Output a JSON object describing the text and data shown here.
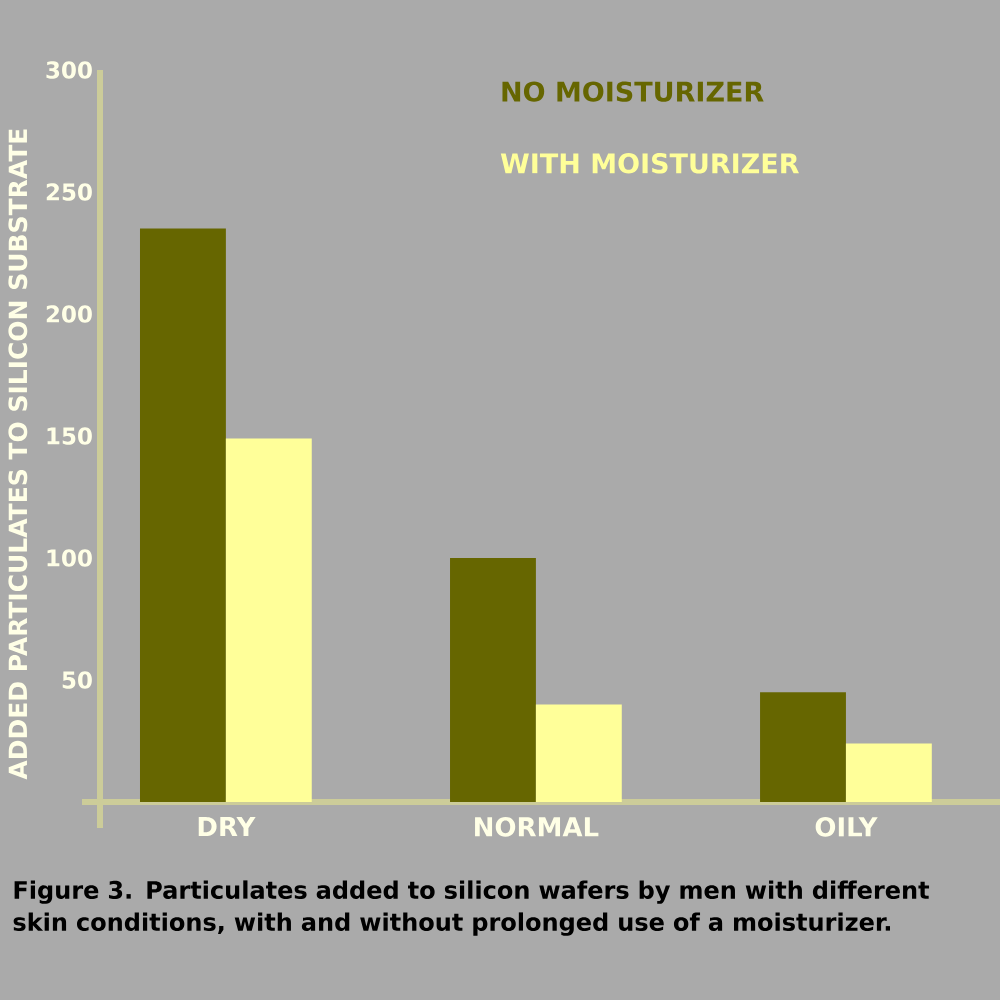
{
  "chart_data": {
    "type": "bar",
    "ylabel": "ADDED PARTICULATES TO SILICON SUBSTRATE",
    "categories": [
      "DRY",
      "NORMAL",
      "OILY"
    ],
    "series": [
      {
        "name": "NO MOISTURIZER",
        "color": "#666600",
        "values": [
          235,
          100,
          45
        ]
      },
      {
        "name": "WITH MOISTURIZER",
        "color": "#ffff99",
        "values": [
          149,
          40,
          24
        ]
      }
    ],
    "ylim": [
      0,
      300
    ],
    "yticks": [
      50,
      100,
      150,
      200,
      250,
      300
    ],
    "legend": "top right",
    "annotations": [
      "Figure 3.  Particulates added to silicon wafers by men with different skin conditions, with and without prolonged use of a moisturizer."
    ]
  }
}
